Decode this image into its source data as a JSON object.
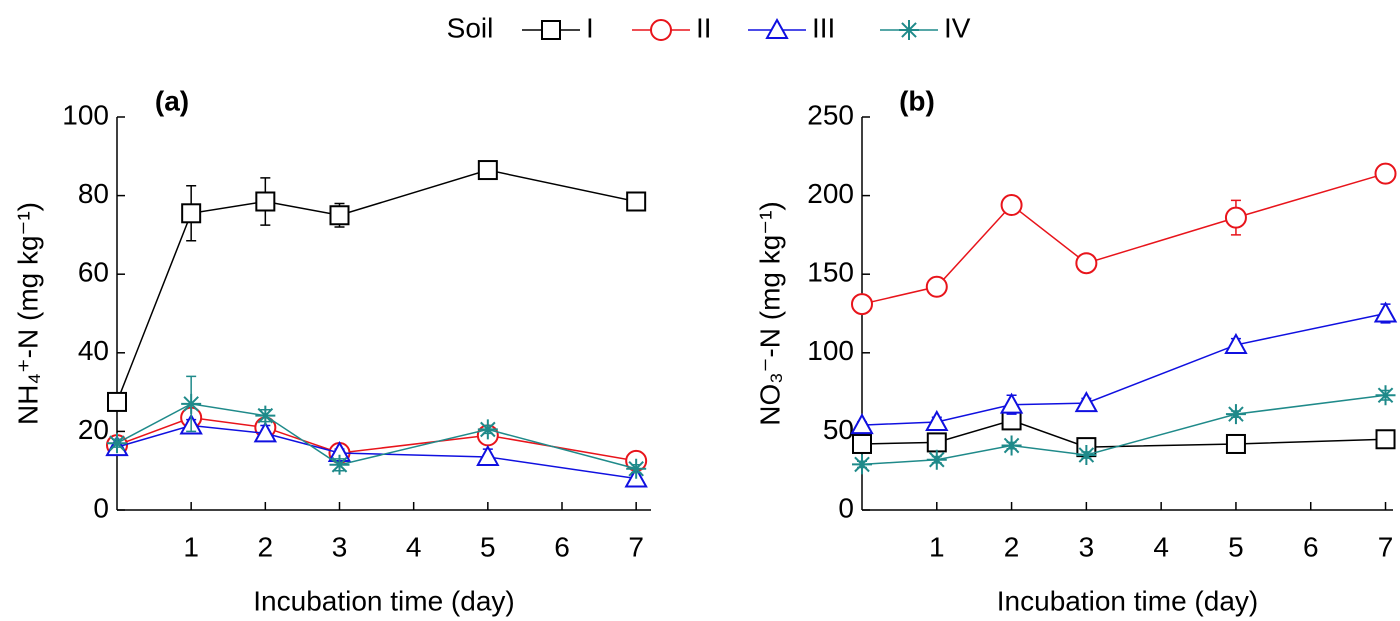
{
  "chart_data": [
    {
      "type": "line",
      "panel_label": "(a)",
      "x_label": "Incubation time (day)",
      "y_label": "NH₄⁺-N (mg kg⁻¹)",
      "legend_title": "Soil",
      "x": [
        0,
        1,
        2,
        3,
        5,
        7
      ],
      "xlim": [
        0,
        7.2
      ],
      "xticks": [
        1,
        2,
        3,
        4,
        5,
        6,
        7
      ],
      "ylim": [
        0,
        100
      ],
      "yticks": [
        0,
        20,
        40,
        60,
        80,
        100
      ],
      "series": [
        {
          "name": "I",
          "color": "#000000",
          "marker": "square",
          "values": [
            27.5,
            75.5,
            78.5,
            75,
            86.5,
            78.5
          ],
          "errors": [
            1,
            7,
            6,
            3,
            1,
            1.5
          ]
        },
        {
          "name": "II",
          "color": "#e8141b",
          "marker": "circle",
          "values": [
            16.5,
            23.5,
            21,
            14.5,
            19,
            12.5
          ],
          "errors": [
            1,
            2,
            2,
            1,
            1,
            1.5
          ]
        },
        {
          "name": "III",
          "color": "#1010e0",
          "marker": "triangle",
          "values": [
            16,
            21.5,
            19.5,
            14.5,
            13.5,
            8
          ],
          "errors": [
            1,
            1.5,
            2,
            1,
            2,
            1.5
          ]
        },
        {
          "name": "IV",
          "color": "#1f8a8a",
          "marker": "star",
          "values": [
            17,
            27,
            24,
            11.5,
            20.5,
            10.5
          ],
          "errors": [
            1,
            7,
            1.5,
            1.5,
            1,
            1
          ]
        }
      ]
    },
    {
      "type": "line",
      "panel_label": "(b)",
      "x_label": "Incubation time (day)",
      "y_label": "NO₃⁻-N (mg kg⁻¹)",
      "x": [
        0,
        1,
        2,
        3,
        5,
        7
      ],
      "xlim": [
        0,
        7.1
      ],
      "xticks": [
        1,
        2,
        3,
        4,
        5,
        6,
        7
      ],
      "ylim": [
        0,
        250
      ],
      "yticks": [
        0,
        50,
        100,
        150,
        200,
        250
      ],
      "series": [
        {
          "name": "I",
          "color": "#000000",
          "marker": "square",
          "values": [
            42,
            43,
            57,
            40,
            42,
            45
          ],
          "errors": [
            3,
            3,
            4,
            3,
            3,
            3
          ]
        },
        {
          "name": "II",
          "color": "#e8141b",
          "marker": "circle",
          "values": [
            131,
            142,
            194,
            157,
            186,
            214
          ],
          "errors": [
            3,
            2,
            2,
            3,
            11,
            4
          ]
        },
        {
          "name": "III",
          "color": "#1010e0",
          "marker": "triangle",
          "values": [
            54,
            56,
            67,
            68,
            105,
            125
          ],
          "errors": [
            2,
            3,
            6,
            3,
            4,
            6
          ]
        },
        {
          "name": "IV",
          "color": "#1f8a8a",
          "marker": "star",
          "values": [
            29,
            32,
            41,
            35,
            61,
            73
          ],
          "errors": [
            2,
            2,
            2,
            2,
            2,
            3
          ]
        }
      ]
    }
  ]
}
